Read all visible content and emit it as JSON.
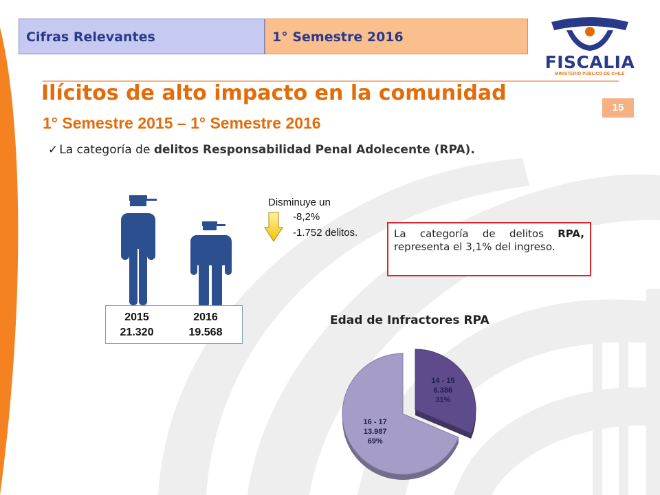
{
  "header": {
    "tab_left": "Cifras Relevantes",
    "tab_right": "1° Semestre 2016"
  },
  "logo": {
    "name": "FISCALIA",
    "subtitle": "MINISTERIO PÚBLICO DE CHILE"
  },
  "page_number": "15",
  "title": "Ilícitos de alto impacto en la comunidad",
  "subtitle": "1° Semestre 2015 – 1° Semestre 2016",
  "bullet": {
    "prefix": "La categoría de",
    "emphasis": "delitos Responsabilidad Penal Adolecente (RPA)."
  },
  "comparison": {
    "year_2015": "2015",
    "value_2015": "21.320",
    "year_2016": "2016",
    "value_2016": "19.568"
  },
  "decrease": {
    "label": "Disminuye un",
    "percent": "-8,2%",
    "count": "-1.752 delitos."
  },
  "info_box": {
    "before": "La categoría de delitos",
    "bold": "RPA,",
    "after": "representa el 3,1% del ingreso."
  },
  "colors": {
    "accent_orange": "#e36c0a",
    "navy": "#2a3a8a",
    "figure_blue": "#2b4f8f",
    "info_border": "#d9262c"
  },
  "chart_data": {
    "type": "pie",
    "title": "Edad de Infractores RPA",
    "slices": [
      {
        "label": "14 - 15",
        "value": 6386,
        "value_text": "6.386",
        "percent_text": "31%",
        "color": "#5e4b8b"
      },
      {
        "label": "16 - 17",
        "value": 13987,
        "value_text": "13.987",
        "percent_text": "69%",
        "color": "#a59cc8"
      }
    ]
  }
}
